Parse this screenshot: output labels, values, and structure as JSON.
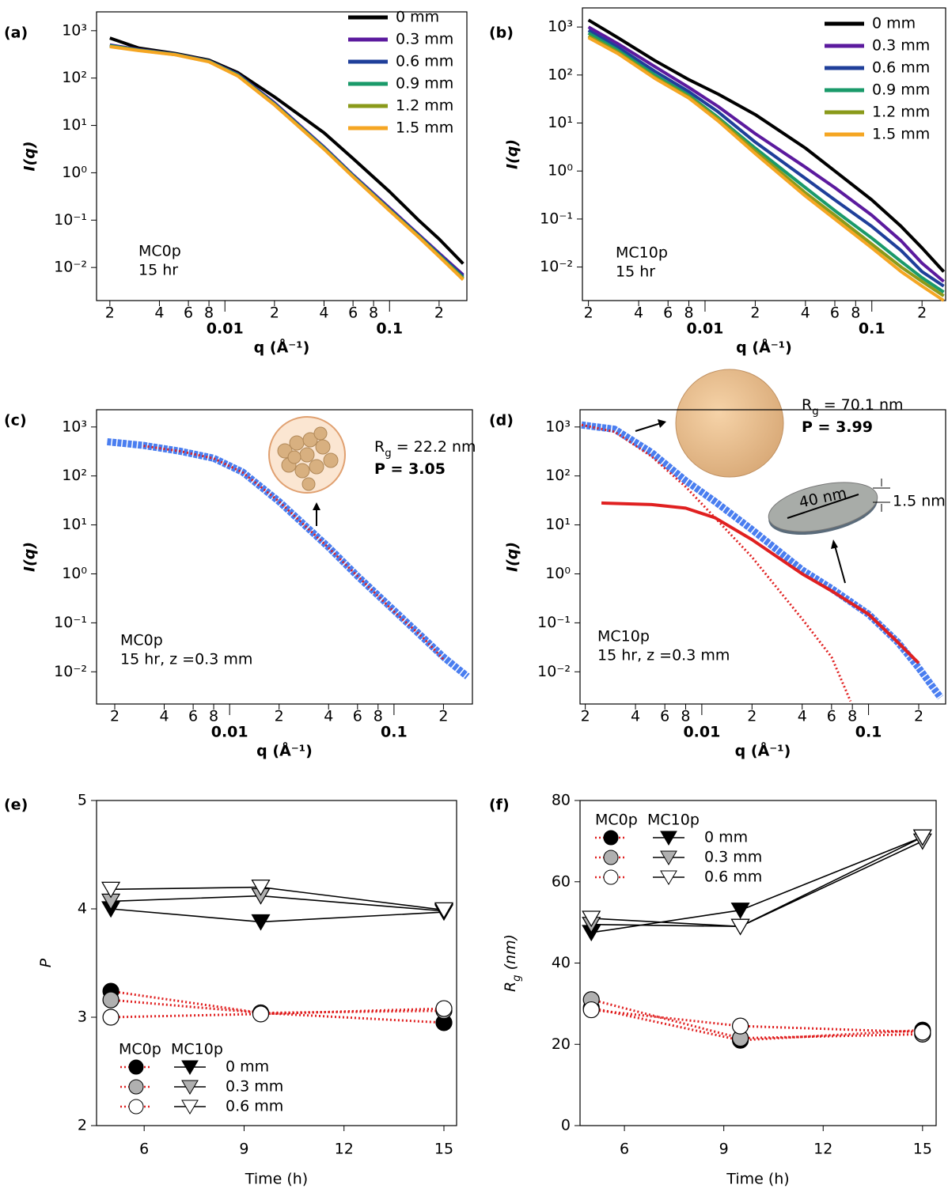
{
  "chart_data": [
    {
      "type": "line",
      "panel_label": "(a)",
      "log_x": true,
      "log_y": true,
      "x_label": "q (Å⁻¹)",
      "y_label": "I(q)",
      "xlim": [
        0.00166,
        0.295
      ],
      "ylim": [
        0.002,
        2500
      ],
      "xticks": [
        {
          "value": 0.002,
          "label": "2"
        },
        {
          "value": 0.004,
          "label": "4"
        },
        {
          "value": 0.006,
          "label": "6"
        },
        {
          "value": 0.008,
          "label": "8"
        },
        0.01,
        {
          "value": 0.02,
          "label": "2"
        },
        {
          "value": 0.04,
          "label": "4"
        },
        {
          "value": 0.06,
          "label": "6"
        },
        {
          "value": 0.08,
          "label": "8"
        },
        0.1,
        {
          "value": 0.2,
          "label": "2"
        }
      ],
      "yticks": [
        {
          "value": 1000,
          "label": "10³"
        },
        {
          "value": 100,
          "label": "10²"
        },
        {
          "value": 10,
          "label": "10¹"
        },
        {
          "value": 1,
          "label": "10⁰"
        },
        {
          "value": 0.1,
          "label": "10⁻¹"
        },
        {
          "value": 0.01,
          "label": "10⁻²"
        }
      ],
      "annotations": [
        "MC0p",
        "15 hr"
      ],
      "x": [
        0.002,
        0.003,
        0.005,
        0.008,
        0.012,
        0.02,
        0.04,
        0.06,
        0.1,
        0.15,
        0.2,
        0.28
      ],
      "series": [
        {
          "name": "0 mm",
          "color": "#000000",
          "values": [
            700,
            430,
            330,
            240,
            130,
            40,
            7,
            2,
            0.4,
            0.1,
            0.04,
            0.012
          ]
        },
        {
          "name": "0.3 mm",
          "color": "#5b1a9e",
          "values": [
            500,
            400,
            320,
            230,
            120,
            30,
            3.5,
            0.9,
            0.18,
            0.05,
            0.02,
            0.007
          ]
        },
        {
          "name": "0.6 mm",
          "color": "#1f3f9a",
          "values": [
            490,
            395,
            318,
            228,
            118,
            29,
            3.4,
            0.88,
            0.17,
            0.048,
            0.019,
            0.0065
          ]
        },
        {
          "name": "0.9 mm",
          "color": "#1a9a6a",
          "values": [
            480,
            390,
            315,
            225,
            115,
            28,
            3.3,
            0.85,
            0.165,
            0.046,
            0.018,
            0.006
          ]
        },
        {
          "name": "1.2 mm",
          "color": "#8a9a1a",
          "values": [
            470,
            385,
            312,
            222,
            112,
            27.5,
            3.2,
            0.83,
            0.16,
            0.045,
            0.0175,
            0.0058
          ]
        },
        {
          "name": "1.5 mm",
          "color": "#f5a623",
          "values": [
            460,
            380,
            310,
            220,
            110,
            27,
            3.15,
            0.82,
            0.158,
            0.044,
            0.017,
            0.0055
          ]
        }
      ]
    },
    {
      "type": "line",
      "panel_label": "(b)",
      "log_x": true,
      "log_y": true,
      "x_label": "q (Å⁻¹)",
      "y_label": "I(q)",
      "xlim": [
        0.00184,
        0.277
      ],
      "ylim": [
        0.002,
        2500
      ],
      "xticks": [
        {
          "value": 0.002,
          "label": "2"
        },
        {
          "value": 0.004,
          "label": "4"
        },
        {
          "value": 0.006,
          "label": "6"
        },
        {
          "value": 0.008,
          "label": "8"
        },
        0.01,
        {
          "value": 0.02,
          "label": "2"
        },
        {
          "value": 0.04,
          "label": "4"
        },
        {
          "value": 0.06,
          "label": "6"
        },
        {
          "value": 0.08,
          "label": "8"
        },
        0.1,
        {
          "value": 0.2,
          "label": "2"
        }
      ],
      "yticks": [
        {
          "value": 1000,
          "label": "10³"
        },
        {
          "value": 100,
          "label": "10²"
        },
        {
          "value": 10,
          "label": "10¹"
        },
        {
          "value": 1,
          "label": "10⁰"
        },
        {
          "value": 0.1,
          "label": "10⁻¹"
        },
        {
          "value": 0.01,
          "label": "10⁻²"
        }
      ],
      "annotations": [
        "MC10p",
        "15 hr"
      ],
      "x": [
        0.002,
        0.003,
        0.005,
        0.008,
        0.012,
        0.02,
        0.04,
        0.06,
        0.1,
        0.15,
        0.2,
        0.27
      ],
      "series": [
        {
          "name": "0 mm",
          "color": "#000000",
          "values": [
            1400,
            600,
            200,
            80,
            40,
            15,
            3,
            1,
            0.25,
            0.07,
            0.025,
            0.008
          ]
        },
        {
          "name": "0.3 mm",
          "color": "#5b1a9e",
          "values": [
            1000,
            450,
            150,
            55,
            22,
            6,
            1.2,
            0.45,
            0.12,
            0.035,
            0.012,
            0.005
          ]
        },
        {
          "name": "0.6 mm",
          "color": "#1f3f9a",
          "values": [
            850,
            380,
            120,
            45,
            17,
            4,
            0.7,
            0.25,
            0.07,
            0.022,
            0.008,
            0.004
          ]
        },
        {
          "name": "0.9 mm",
          "color": "#1a9a6a",
          "values": [
            750,
            330,
            100,
            38,
            13,
            3,
            0.45,
            0.15,
            0.04,
            0.013,
            0.006,
            0.003
          ]
        },
        {
          "name": "1.2 mm",
          "color": "#8a9a1a",
          "values": [
            650,
            300,
            90,
            35,
            12,
            2.6,
            0.35,
            0.12,
            0.03,
            0.01,
            0.005,
            0.0025
          ]
        },
        {
          "name": "1.5 mm",
          "color": "#f5a623",
          "values": [
            600,
            280,
            85,
            33,
            11,
            2.3,
            0.3,
            0.1,
            0.025,
            0.008,
            0.004,
            0.002
          ]
        }
      ]
    },
    {
      "type": "line",
      "panel_label": "(c)",
      "log_x": true,
      "log_y": true,
      "x_label": "q (Å⁻¹)",
      "y_label": "I(q)",
      "xlim": [
        0.00155,
        0.3
      ],
      "ylim": [
        0.0022,
        2250
      ],
      "xticks": [
        {
          "value": 0.002,
          "label": "2"
        },
        {
          "value": 0.004,
          "label": "4"
        },
        {
          "value": 0.006,
          "label": "6"
        },
        {
          "value": 0.008,
          "label": "8"
        },
        0.01,
        {
          "value": 0.02,
          "label": "2"
        },
        {
          "value": 0.04,
          "label": "4"
        },
        {
          "value": 0.06,
          "label": "6"
        },
        {
          "value": 0.08,
          "label": "8"
        },
        0.1,
        {
          "value": 0.2,
          "label": "2"
        }
      ],
      "yticks": [
        {
          "value": 1000,
          "label": "10³"
        },
        {
          "value": 100,
          "label": "10²"
        },
        {
          "value": 10,
          "label": "10¹"
        },
        {
          "value": 1,
          "label": "10⁰"
        },
        {
          "value": 0.1,
          "label": "10⁻¹"
        },
        {
          "value": 0.01,
          "label": "10⁻²"
        }
      ],
      "annotations": [
        "MC0p",
        "15 hr, z =0.3 mm"
      ],
      "fit_labels": [
        [
          "R",
          "g",
          " = 22.2 nm"
        ],
        [
          "P = 3.05"
        ]
      ],
      "series": [
        {
          "color": "#4a7ef0",
          "style": "data",
          "x": [
            0.0018,
            0.003,
            0.005,
            0.008,
            0.012,
            0.02,
            0.04,
            0.06,
            0.1,
            0.15,
            0.2,
            0.28
          ],
          "values": [
            500,
            420,
            320,
            230,
            120,
            30,
            3.5,
            0.9,
            0.18,
            0.05,
            0.02,
            0.008
          ]
        },
        {
          "color": "#e02020",
          "style": "dotted",
          "x": [
            0.003,
            0.005,
            0.008,
            0.012,
            0.02,
            0.04,
            0.06,
            0.1,
            0.15,
            0.2
          ],
          "values": [
            410,
            320,
            228,
            118,
            30,
            3.4,
            0.9,
            0.17,
            0.05,
            0.018
          ]
        }
      ]
    },
    {
      "type": "line",
      "panel_label": "(d)",
      "log_x": true,
      "log_y": true,
      "x_label": "q (Å⁻¹)",
      "y_label": "I(q)",
      "xlim": [
        0.00186,
        0.29
      ],
      "ylim": [
        0.0022,
        2250
      ],
      "xticks": [
        {
          "value": 0.002,
          "label": "2"
        },
        {
          "value": 0.004,
          "label": "4"
        },
        {
          "value": 0.006,
          "label": "6"
        },
        {
          "value": 0.008,
          "label": "8"
        },
        0.01,
        {
          "value": 0.02,
          "label": "2"
        },
        {
          "value": 0.04,
          "label": "4"
        },
        {
          "value": 0.06,
          "label": "6"
        },
        {
          "value": 0.08,
          "label": "8"
        },
        0.1,
        {
          "value": 0.2,
          "label": "2"
        }
      ],
      "yticks": [
        {
          "value": 1000,
          "label": "10³"
        },
        {
          "value": 100,
          "label": "10²"
        },
        {
          "value": 10,
          "label": "10¹"
        },
        {
          "value": 1,
          "label": "10⁰"
        },
        {
          "value": 0.1,
          "label": "10⁻¹"
        },
        {
          "value": 0.01,
          "label": "10⁻²"
        }
      ],
      "annotations": [
        "MC10p",
        "15 hr, z =0.3 mm"
      ],
      "fit_labels": [
        [
          "R",
          "g",
          " = 70.1 nm"
        ],
        [
          "P = 3.99"
        ]
      ],
      "shape_labels": [
        "40 nm",
        "1.5 nm"
      ],
      "series": [
        {
          "color": "#4a7ef0",
          "style": "data",
          "x": [
            0.0019,
            0.003,
            0.005,
            0.008,
            0.012,
            0.02,
            0.04,
            0.06,
            0.1,
            0.15,
            0.2,
            0.27
          ],
          "values": [
            1100,
            900,
            300,
            80,
            30,
            8,
            1.2,
            0.5,
            0.15,
            0.04,
            0.012,
            0.003
          ]
        },
        {
          "color": "#e02020",
          "style": "dotted",
          "x": [
            0.0019,
            0.003,
            0.005,
            0.008,
            0.012,
            0.02,
            0.04,
            0.06,
            0.078
          ],
          "values": [
            1100,
            800,
            250,
            60,
            14,
            2.2,
            0.12,
            0.02,
            0.0025
          ]
        },
        {
          "color": "#e02020",
          "style": "solid",
          "x": [
            0.0025,
            0.005,
            0.008,
            0.012,
            0.02,
            0.04,
            0.06,
            0.1,
            0.15,
            0.2
          ],
          "values": [
            28,
            26,
            22,
            14,
            5,
            1,
            0.45,
            0.15,
            0.04,
            0.015
          ]
        }
      ]
    },
    {
      "type": "line",
      "panel_label": "(e)",
      "x_label": "Time (h)",
      "y_label": [
        "P"
      ],
      "xlim": [
        4.57,
        15.38
      ],
      "ylim": [
        2,
        5
      ],
      "xticks": [
        6,
        9,
        12,
        15
      ],
      "yticks": [
        2,
        3,
        4,
        5
      ],
      "x": [
        5,
        9.5,
        15
      ],
      "series": [
        {
          "name": "MC0p",
          "color": "#e02020",
          "style": "dotted",
          "marker": "circle",
          "items": [
            {
              "fill": "#000000",
              "values": [
                3.24,
                3.04,
                2.95
              ]
            },
            {
              "fill": "#b0b0b0",
              "values": [
                3.16,
                3.04,
                3.06
              ]
            },
            {
              "fill": "#ffffff",
              "values": [
                3.0,
                3.03,
                3.08
              ]
            }
          ]
        },
        {
          "name": "MC10p",
          "color": "#000000",
          "style": "solid",
          "marker": "triangle",
          "items": [
            {
              "name": "0 mm",
              "fill": "#000000",
              "values": [
                4.0,
                3.88,
                3.97
              ]
            },
            {
              "name": "0.3 mm",
              "fill": "#b0b0b0",
              "values": [
                4.07,
                4.12,
                3.98
              ]
            },
            {
              "name": "0.6 mm",
              "fill": "#ffffff",
              "values": [
                4.18,
                4.2,
                3.99
              ]
            }
          ]
        }
      ]
    },
    {
      "type": "line",
      "panel_label": "(f)",
      "x_label": "Time (h)",
      "y_label": [
        "R",
        "g",
        " (nm)"
      ],
      "xlim": [
        4.66,
        15.41
      ],
      "ylim": [
        0,
        80
      ],
      "xticks": [
        6,
        9,
        12,
        15
      ],
      "yticks": [
        0,
        20,
        40,
        60,
        80
      ],
      "x": [
        5,
        9.5,
        15
      ],
      "series": [
        {
          "name": "MC0p",
          "color": "#e02020",
          "style": "dotted",
          "marker": "circle",
          "items": [
            {
              "fill": "#000000",
              "values": [
                29,
                21,
                23.5
              ]
            },
            {
              "fill": "#b0b0b0",
              "values": [
                31,
                21.5,
                22.5
              ]
            },
            {
              "fill": "#ffffff",
              "values": [
                28.5,
                24.5,
                23
              ]
            }
          ]
        },
        {
          "name": "MC10p",
          "color": "#000000",
          "style": "solid",
          "marker": "triangle",
          "items": [
            {
              "name": "0 mm",
              "fill": "#000000",
              "values": [
                47.5,
                53,
                71
              ]
            },
            {
              "name": "0.3 mm",
              "fill": "#b0b0b0",
              "values": [
                49.5,
                49,
                70
              ]
            },
            {
              "name": "0.6 mm",
              "fill": "#ffffff",
              "values": [
                51,
                49,
                71
              ]
            }
          ]
        }
      ]
    }
  ]
}
